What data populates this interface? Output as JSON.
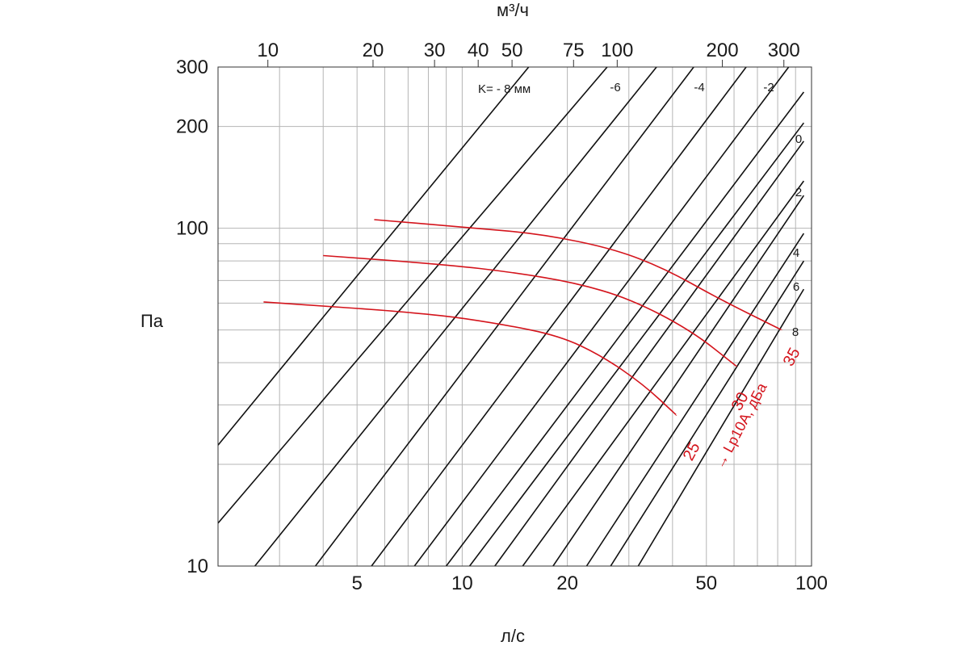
{
  "chart_data": {
    "type": "line",
    "xlabel": "л/с",
    "x2label": "м³/ч",
    "ylabel": "Па",
    "xscale": "log",
    "yscale": "log",
    "xlim": [
      2,
      100
    ],
    "ylim": [
      10,
      300
    ],
    "x_ticks": [
      "5",
      "10",
      "20",
      "50",
      "100"
    ],
    "x_tick_values": [
      5,
      10,
      20,
      50,
      100
    ],
    "x2_ticks": [
      "10",
      "20",
      "30",
      "40",
      "50",
      "75",
      "100",
      "200",
      "300"
    ],
    "x2_tick_values": [
      10,
      20,
      30,
      40,
      50,
      75,
      100,
      200,
      300
    ],
    "y_ticks": [
      "10",
      "100",
      "200",
      "300"
    ],
    "y_tick_values": [
      10,
      100,
      200,
      300
    ],
    "grid": true,
    "k_lines": {
      "unit_label": "K= - 8 мм",
      "labels": [
        "-6",
        "-4",
        "-2",
        "0",
        "2",
        "4",
        "6",
        "8"
      ],
      "series": [
        {
          "k": -8,
          "points": [
            [
              2,
              22.8
            ],
            [
              15.5,
              300
            ]
          ]
        },
        {
          "k": -7,
          "points": [
            [
              2,
              13.4
            ],
            [
              26,
              300
            ]
          ]
        },
        {
          "k": -6,
          "points": [
            [
              2.55,
              10
            ],
            [
              36,
              300
            ]
          ]
        },
        {
          "k": -5,
          "points": [
            [
              3.8,
              10
            ],
            [
              46,
              300
            ]
          ]
        },
        {
          "k": -4,
          "points": [
            [
              5.5,
              10
            ],
            [
              65,
              300
            ]
          ]
        },
        {
          "k": -3,
          "points": [
            [
              7.3,
              10
            ],
            [
              86,
              300
            ]
          ]
        },
        {
          "k": -2,
          "points": [
            [
              9.0,
              10
            ],
            [
              95,
              253
            ]
          ]
        },
        {
          "k": -1,
          "points": [
            [
              10.5,
              10
            ],
            [
              95,
              205
            ]
          ]
        },
        {
          "k": 0,
          "points": [
            [
              12.4,
              10
            ],
            [
              95,
              181
            ]
          ]
        },
        {
          "k": 1,
          "points": [
            [
              14.9,
              10
            ],
            [
              95,
              138
            ]
          ]
        },
        {
          "k": 2,
          "points": [
            [
              18.2,
              10
            ],
            [
              95,
              125
            ]
          ]
        },
        {
          "k": 4,
          "points": [
            [
              22.7,
              10
            ],
            [
              95,
              96.5
            ]
          ]
        },
        {
          "k": 6,
          "points": [
            [
              26.6,
              10
            ],
            [
              95,
              80
            ]
          ]
        },
        {
          "k": 8,
          "points": [
            [
              31.9,
              10
            ],
            [
              95,
              66
            ]
          ]
        }
      ]
    },
    "series": [
      {
        "name": "25",
        "points": [
          [
            2.7,
            60.5
          ],
          [
            8.0,
            56
          ],
          [
            13.0,
            52
          ],
          [
            19.0,
            48
          ],
          [
            25.0,
            42
          ],
          [
            33.0,
            34.5
          ],
          [
            41.0,
            28
          ]
        ]
      },
      {
        "name": "30",
        "points": [
          [
            4.0,
            83
          ],
          [
            9.0,
            78
          ],
          [
            14.0,
            74
          ],
          [
            21.0,
            69
          ],
          [
            30.0,
            62
          ],
          [
            45.0,
            50
          ],
          [
            61.0,
            39
          ]
        ]
      },
      {
        "name": "35",
        "points": [
          [
            5.6,
            106
          ],
          [
            11.0,
            100
          ],
          [
            17.0,
            96
          ],
          [
            27.0,
            87
          ],
          [
            38.0,
            76
          ],
          [
            54.0,
            62
          ],
          [
            82.0,
            50
          ]
        ]
      }
    ],
    "series_labels": [
      "25",
      "30",
      "35"
    ],
    "annotation": "→ Lp10A, дБа"
  }
}
